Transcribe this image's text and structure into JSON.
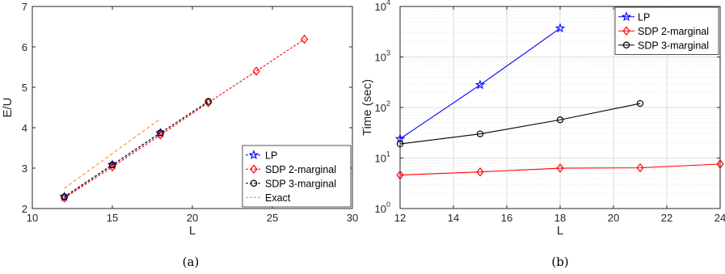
{
  "chart_data": [
    {
      "type": "line",
      "panel_label": "(a)",
      "xlabel": "L",
      "ylabel": "E/U",
      "xlim": [
        10,
        30
      ],
      "ylim": [
        2,
        7
      ],
      "x_ticks": [
        10,
        15,
        20,
        25,
        30
      ],
      "y_ticks": [
        2,
        3,
        4,
        5,
        6,
        7
      ],
      "grid": false,
      "yscale": "linear",
      "legend_position": "bottom-right",
      "series": [
        {
          "name": "LP",
          "color": "#0000ff",
          "marker": "star",
          "line": "dashed",
          "x": [
            12,
            15,
            18
          ],
          "y": [
            2.29,
            3.08,
            3.87
          ]
        },
        {
          "name": "SDP 2-marginal",
          "color": "#ff0000",
          "marker": "diamond",
          "line": "dashed",
          "x": [
            12,
            15,
            18,
            21,
            24,
            27
          ],
          "y": [
            2.26,
            3.03,
            3.82,
            4.62,
            5.4,
            6.19
          ]
        },
        {
          "name": "SDP 3-marginal",
          "color": "#000000",
          "marker": "circle",
          "line": "dashed",
          "x": [
            12,
            15,
            18,
            21
          ],
          "y": [
            2.29,
            3.08,
            3.87,
            4.65
          ]
        },
        {
          "name": "Exact",
          "color": "#ff8c1a",
          "marker": "none",
          "line": "dashed",
          "x": [
            12,
            18
          ],
          "y": [
            2.5,
            4.22
          ]
        }
      ]
    },
    {
      "type": "line",
      "panel_label": "(b)",
      "xlabel": "L",
      "ylabel": "Time (sec)",
      "xlim": [
        12,
        24
      ],
      "ylim": [
        1,
        10000
      ],
      "x_ticks": [
        12,
        14,
        16,
        18,
        20,
        22,
        24
      ],
      "y_ticks": [
        1,
        10,
        100,
        1000,
        10000
      ],
      "y_tick_labels": [
        {
          "base": "10",
          "exp": "0"
        },
        {
          "base": "10",
          "exp": "1"
        },
        {
          "base": "10",
          "exp": "2"
        },
        {
          "base": "10",
          "exp": "3"
        },
        {
          "base": "10",
          "exp": "4"
        }
      ],
      "grid": true,
      "yscale": "log",
      "legend_position": "top-right",
      "series": [
        {
          "name": "LP",
          "color": "#0000ff",
          "marker": "star",
          "line": "solid",
          "x": [
            12,
            15,
            18
          ],
          "y": [
            24,
            280,
            3700
          ]
        },
        {
          "name": "SDP 2-marginal",
          "color": "#ff0000",
          "marker": "diamond",
          "line": "solid",
          "x": [
            12,
            15,
            18,
            21,
            24
          ],
          "y": [
            4.6,
            5.3,
            6.3,
            6.4,
            7.6
          ]
        },
        {
          "name": "SDP 3-marginal",
          "color": "#000000",
          "marker": "circle",
          "line": "solid",
          "x": [
            12,
            15,
            18,
            21
          ],
          "y": [
            19,
            30,
            57,
            120
          ]
        }
      ]
    }
  ]
}
